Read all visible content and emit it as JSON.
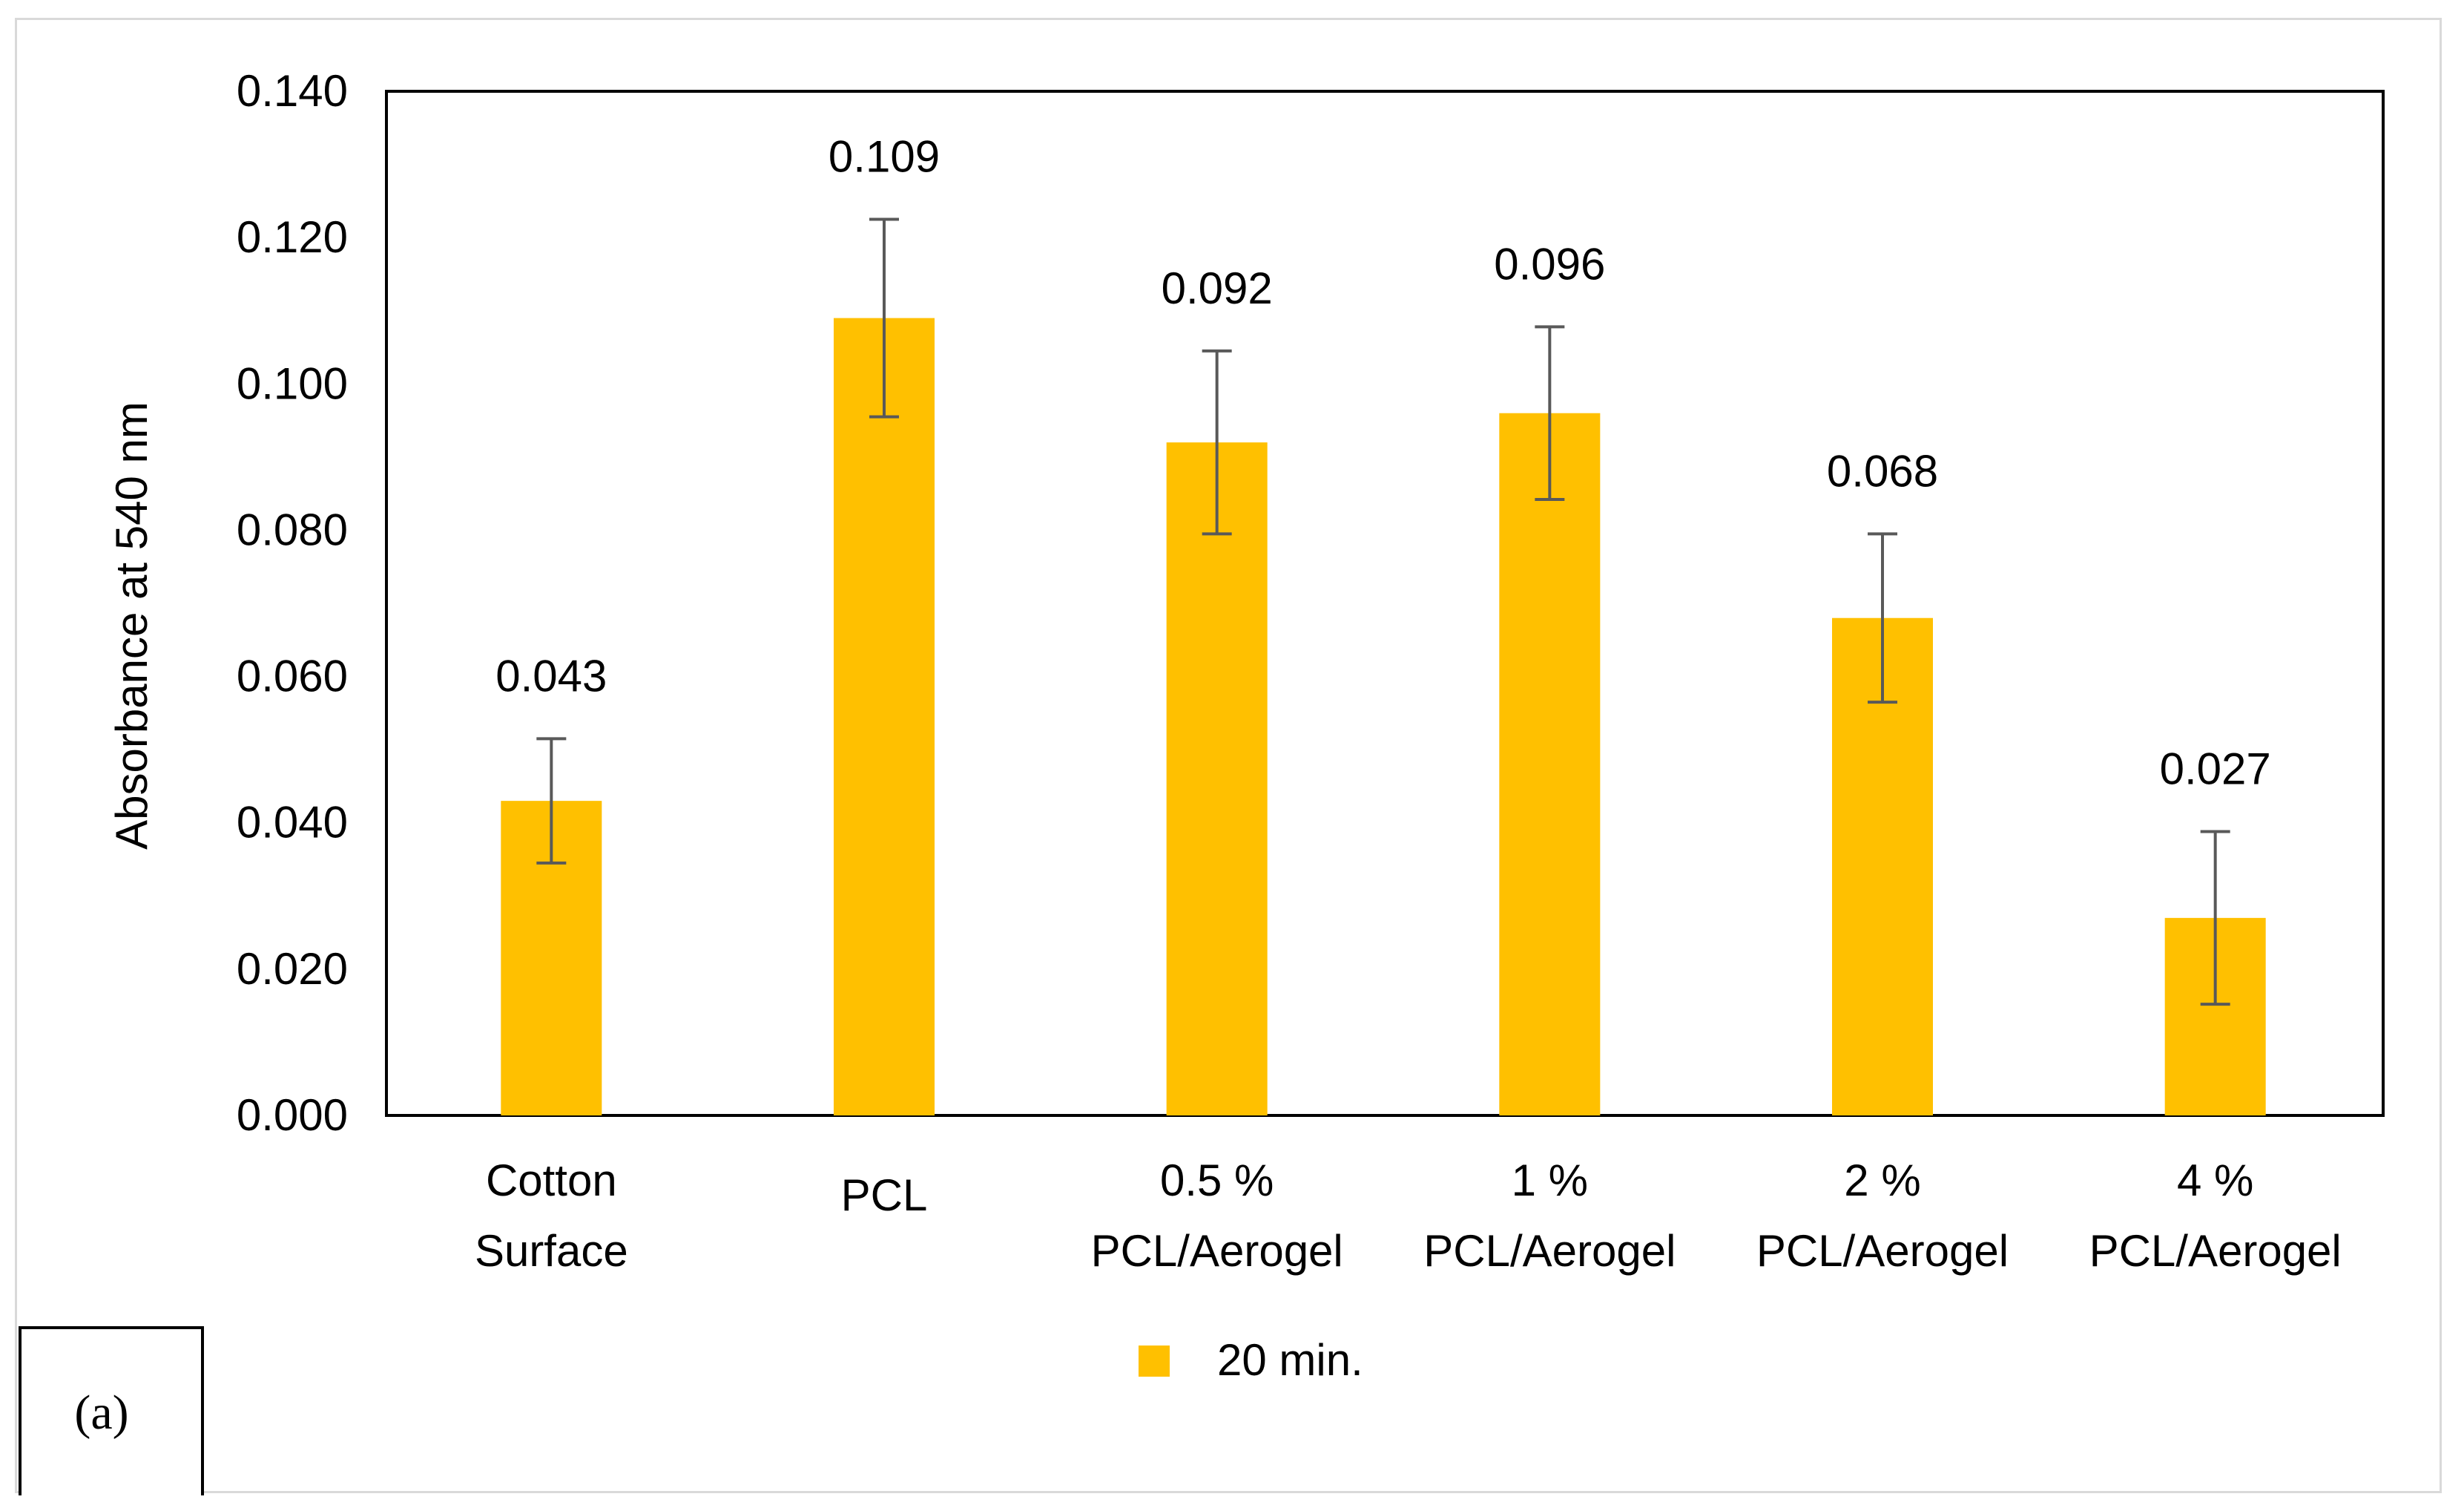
{
  "chart_data": {
    "type": "bar",
    "title": "",
    "xlabel": "",
    "ylabel": "Absorbance at 540 nm",
    "ylim": [
      0,
      0.14
    ],
    "yticks": [
      "0.000",
      "0.020",
      "0.040",
      "0.060",
      "0.080",
      "0.100",
      "0.120",
      "0.140"
    ],
    "categories": [
      [
        "Cotton",
        "Surface"
      ],
      [
        "PCL"
      ],
      [
        "0.5 %",
        "PCL/Aerogel"
      ],
      [
        "1 %",
        "PCL/Aerogel"
      ],
      [
        "2 %",
        "PCL/Aerogel"
      ],
      [
        "4 %",
        "PCL/Aerogel"
      ]
    ],
    "series": [
      {
        "name": "20 min.",
        "color": "#ffc000",
        "values": [
          0.043,
          0.109,
          0.092,
          0.096,
          0.068,
          0.027
        ],
        "labels": [
          "0.043",
          "0.109",
          "0.092",
          "0.096",
          "0.068",
          "0.027"
        ],
        "errors": [
          0.0085,
          0.0135,
          0.0125,
          0.0118,
          0.0115,
          0.0118
        ]
      }
    ],
    "grid": false,
    "legend_position": "bottom",
    "panel_label": "(a)"
  }
}
